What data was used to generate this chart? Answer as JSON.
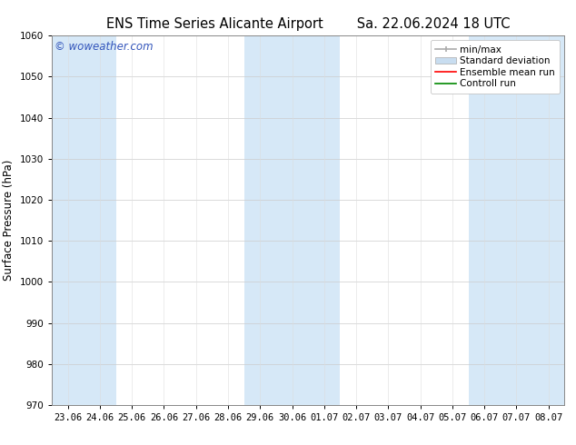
{
  "title_left": "ENS Time Series Alicante Airport",
  "title_right": "Sa. 22.06.2024 18 UTC",
  "ylabel": "Surface Pressure (hPa)",
  "ylim": [
    970,
    1060
  ],
  "yticks": [
    970,
    980,
    990,
    1000,
    1010,
    1020,
    1030,
    1040,
    1050,
    1060
  ],
  "xtick_labels": [
    "23.06",
    "24.06",
    "25.06",
    "26.06",
    "27.06",
    "28.06",
    "29.06",
    "30.06",
    "01.07",
    "02.07",
    "03.07",
    "04.07",
    "05.07",
    "06.07",
    "07.07",
    "08.07"
  ],
  "num_ticks": 16,
  "background_color": "#ffffff",
  "plot_bg_color": "#ffffff",
  "shaded_band_color": "#d6e8f7",
  "shaded_cols": [
    0,
    1,
    6,
    7,
    8,
    13,
    14,
    15
  ],
  "watermark_text": "© woweather.com",
  "watermark_color": "#3355bb",
  "legend_minmax_color": "#aaaaaa",
  "legend_std_color": "#c8ddf0",
  "legend_ens_color": "#ff0000",
  "legend_ctrl_color": "#008800",
  "title_fontsize": 10.5,
  "axis_label_fontsize": 8.5,
  "tick_fontsize": 7.5,
  "legend_fontsize": 7.5,
  "watermark_fontsize": 8.5,
  "figsize": [
    6.34,
    4.9
  ],
  "dpi": 100
}
